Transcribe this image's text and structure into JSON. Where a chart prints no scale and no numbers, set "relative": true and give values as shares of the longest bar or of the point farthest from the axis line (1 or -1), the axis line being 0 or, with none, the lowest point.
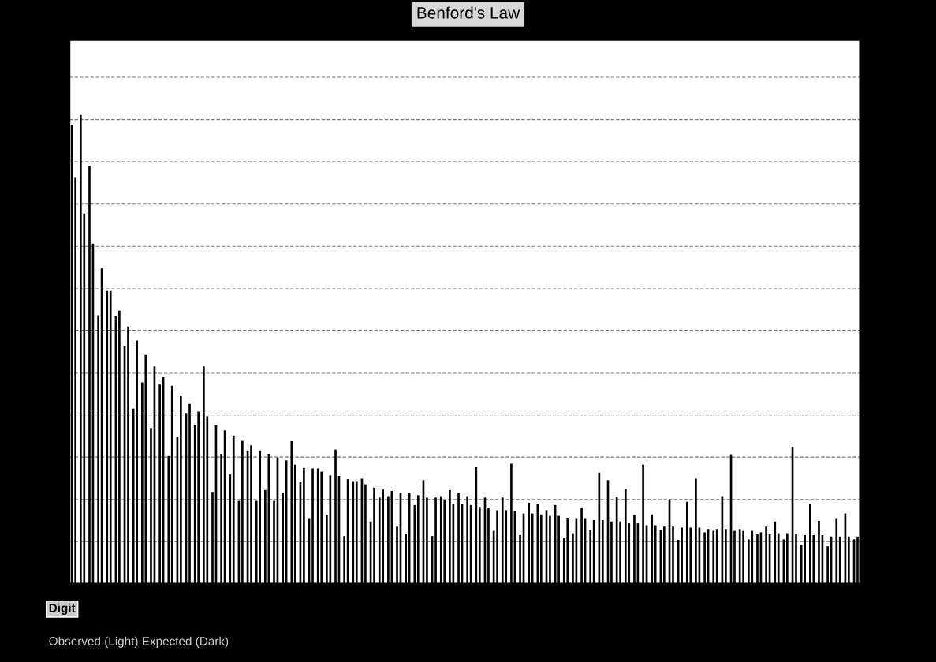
{
  "chart_data": {
    "type": "bar",
    "title": "Benford's Law",
    "xlabel": "Digit",
    "relative": true,
    "grid": "y",
    "annotations": [
      "Observed (Light) Expected (Dark)"
    ],
    "categories": [
      null,
      null,
      null,
      null,
      null,
      null,
      null,
      null,
      null,
      null,
      null,
      null,
      null,
      null,
      null,
      null,
      null,
      null,
      null,
      null,
      null,
      null,
      null,
      null,
      null,
      null,
      null,
      null,
      null,
      null,
      null,
      null,
      null,
      null,
      null,
      null,
      null,
      null,
      null,
      null,
      null,
      null,
      null,
      null,
      null,
      null,
      null,
      null,
      null,
      null,
      null,
      null,
      null,
      null,
      null,
      null,
      null,
      null,
      null,
      null,
      null,
      null,
      null,
      null,
      null,
      null,
      null,
      null,
      null,
      null,
      null,
      null,
      null,
      null,
      null,
      null,
      null,
      null,
      null,
      null,
      null,
      null,
      null,
      null,
      null,
      null,
      null,
      null,
      null,
      null
    ],
    "series": [
      {
        "color": "#000000",
        "values": [
          0.979,
          1,
          0.89,
          0.572,
          0.625,
          0.571,
          0.507,
          0.373,
          0.429,
          0.332,
          0.426,
          0.274,
          0.313,
          0.364,
          0.339,
          0.463,
          0.196,
          0.277,
          0.233,
          0.177,
          0.284,
          0.177,
          0.2,
          0.177,
          0.193,
          0.304,
          0.217,
          0.14,
          0.246,
          0.147,
          0.286,
          0.102,
          0.219,
          0.224,
          0.133,
          0.184,
          0.187,
          0.122,
          0.106,
          0.168,
          0.221,
          0.102,
          0.187,
          0.2,
          0.193,
          0.187,
          0.249,
          0.184,
          0.113,
          0.184,
          0.256,
          0.104,
          0.173,
          0.171,
          0.157,
          0.168,
          0.097,
          0.108,
          0.163,
          0.115,
          0.237,
          0.221,
          0.186,
          0.203,
          0.147,
          0.254,
          0.148,
          0.115,
          0.18,
          0.094,
          0.175,
          0.224,
          0.11,
          0.113,
          0.187,
          0.276,
          0.117,
          0.095,
          0.106,
          0.122,
          0.133,
          0.095,
          0.292,
          0.083,
          0.17,
          0.134,
          0.08,
          0.14,
          0.15,
          0.095
        ]
      },
      {
        "color": "#000000",
        "values": [
          0.866,
          0.79,
          0.726,
          0.673,
          0.625,
          0.583,
          0.548,
          0.518,
          0.489,
          0.463,
          0.44,
          0.422,
          0.401,
          0.385,
          0.367,
          0.357,
          0.339,
          0.327,
          0.316,
          0.306,
          0.295,
          0.284,
          0.277,
          0.269,
          0.263,
          0.254,
          0.247,
          0.246,
          0.239,
          0.231,
          0.23,
          0.223,
          0.219,
          0.212,
          0.205,
          0.201,
          0.198,
          0.194,
          0.193,
          0.189,
          0.184,
          0.184,
          0.178,
          0.171,
          0.171,
          0.168,
          0.164,
          0.161,
          0.157,
          0.157,
          0.155,
          0.15,
          0.15,
          0.148,
          0.145,
          0.145,
          0.141,
          0.14,
          0.14,
          0.136,
          0.136,
          0.133,
          0.133,
          0.129,
          0.129,
          0.125,
          0.125,
          0.122,
          0.122,
          0.12,
          0.12,
          0.12,
          0.117,
          0.117,
          0.117,
          0.113,
          0.113,
          0.113,
          0.11,
          0.106,
          0.108,
          0.108,
          0.106,
          0.104,
          0.104,
          0.104,
          0.101,
          0.101,
          0.101,
          0.101
        ]
      }
    ]
  }
}
